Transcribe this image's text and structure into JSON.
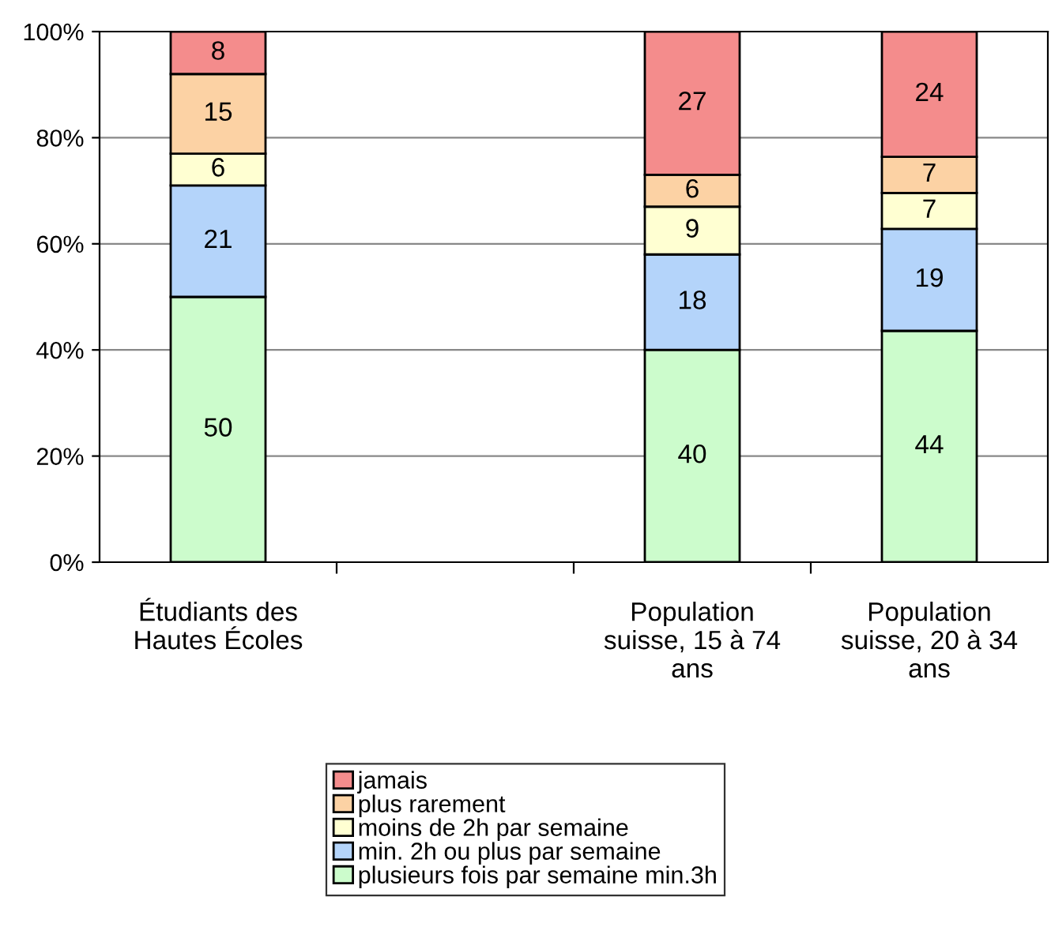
{
  "chart_data": {
    "type": "bar",
    "stacked": true,
    "grid": "y",
    "legend": "bottom",
    "categories": [
      "Étudiants des\nHautes Écoles",
      null,
      "Population\nsuisse, 15 à 74\nans",
      "Population\nsuisse, 20 à 34\nans"
    ],
    "ylim": [
      0,
      100
    ],
    "yticks": [
      {
        "value": 0,
        "label": "0%"
      },
      {
        "value": 20,
        "label": "20%"
      },
      {
        "value": 40,
        "label": "40%"
      },
      {
        "value": 60,
        "label": "60%"
      },
      {
        "value": 80,
        "label": "80%"
      },
      {
        "value": 100,
        "label": "100%"
      }
    ],
    "series": [
      {
        "name": "plusieurs fois par semaine min.3h",
        "color": "#ccfccc",
        "values": [
          50,
          null,
          40,
          43.6
        ],
        "value_labels": [
          "50",
          null,
          "40",
          "44"
        ]
      },
      {
        "name": "min. 2h ou plus par semaine",
        "color": "#b4d4fa",
        "values": [
          21,
          null,
          18,
          19.2
        ],
        "value_labels": [
          "21",
          null,
          "18",
          "19"
        ]
      },
      {
        "name": "moins de 2h par semaine",
        "color": "#ffffd2",
        "values": [
          6,
          null,
          9,
          6.8
        ],
        "value_labels": [
          "6",
          null,
          "9",
          "7"
        ]
      },
      {
        "name": "plus rarement",
        "color": "#fcd2a4",
        "values": [
          15,
          null,
          6,
          6.8
        ],
        "value_labels": [
          "15",
          null,
          "6",
          "7"
        ]
      },
      {
        "name": "jamais",
        "color": "#f48c8c",
        "values": [
          8,
          null,
          27,
          23.6
        ],
        "value_labels": [
          "8",
          null,
          "27",
          "24"
        ]
      }
    ]
  }
}
